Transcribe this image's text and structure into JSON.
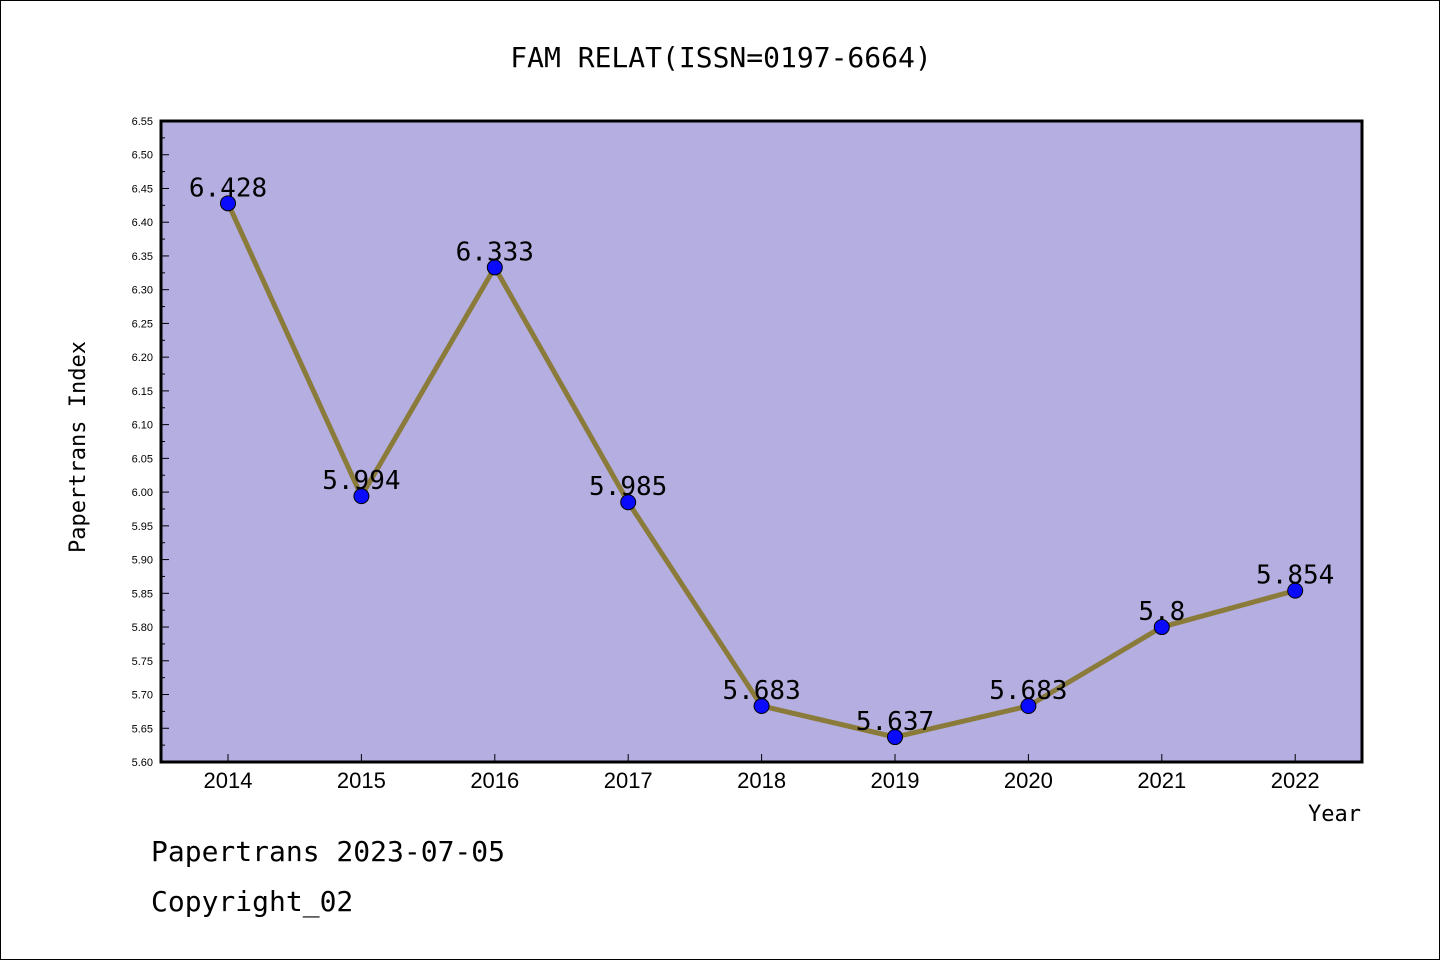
{
  "footer": {
    "line1": "Papertrans 2023-07-05",
    "line2": "Copyright_02"
  },
  "chart_data": {
    "type": "line",
    "title": "FAM RELAT(ISSN=0197-6664)",
    "xlabel": "Year",
    "ylabel": "Papertrans Index",
    "categories": [
      "2014",
      "2015",
      "2016",
      "2017",
      "2018",
      "2019",
      "2020",
      "2021",
      "2022"
    ],
    "values": [
      6.428,
      5.994,
      6.333,
      5.985,
      5.683,
      5.637,
      5.683,
      5.8,
      5.854
    ],
    "data_labels": [
      "6.428",
      "5.994",
      "6.333",
      "5.985",
      "5.683",
      "5.637",
      "5.683",
      "5.8",
      "5.854"
    ],
    "ylim": [
      5.6,
      6.55
    ],
    "yticks": [
      "5.60",
      "5.65",
      "5.70",
      "5.75",
      "5.80",
      "5.85",
      "5.90",
      "5.95",
      "6.00",
      "6.05",
      "6.10",
      "6.15",
      "6.20",
      "6.25",
      "6.30",
      "6.35",
      "6.40",
      "6.45",
      "6.50",
      "6.55"
    ],
    "grid": false,
    "legend": "none",
    "colors": {
      "plot_background": "#b4aee1",
      "line": "#8b7b3a",
      "marker": "#0a0aff"
    }
  }
}
